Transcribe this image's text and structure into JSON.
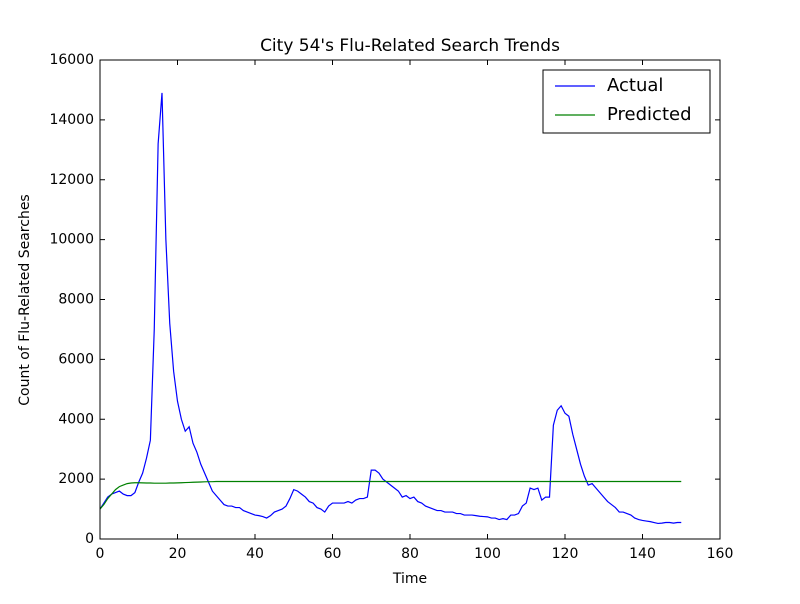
{
  "chart_data": {
    "type": "line",
    "title": "City 54's Flu-Related Search Trends",
    "xlabel": "Time",
    "ylabel": "Count of Flu-Related Searches",
    "x": [
      0,
      1,
      2,
      3,
      4,
      5,
      6,
      7,
      8,
      9,
      10,
      11,
      12,
      13,
      14,
      15,
      16,
      17,
      18,
      19,
      20,
      21,
      22,
      23,
      24,
      25,
      26,
      27,
      28,
      29,
      30,
      31,
      32,
      33,
      34,
      35,
      36,
      37,
      38,
      39,
      40,
      41,
      42,
      43,
      44,
      45,
      46,
      47,
      48,
      49,
      50,
      51,
      52,
      53,
      54,
      55,
      56,
      57,
      58,
      59,
      60,
      61,
      62,
      63,
      64,
      65,
      66,
      67,
      68,
      69,
      70,
      71,
      72,
      73,
      74,
      75,
      76,
      77,
      78,
      79,
      80,
      81,
      82,
      83,
      84,
      85,
      86,
      87,
      88,
      89,
      90,
      91,
      92,
      93,
      94,
      95,
      96,
      97,
      98,
      99,
      100,
      101,
      102,
      103,
      104,
      105,
      106,
      107,
      108,
      109,
      110,
      111,
      112,
      113,
      114,
      115,
      116,
      117,
      118,
      119,
      120,
      121,
      122,
      123,
      124,
      125,
      126,
      127,
      128,
      129,
      130,
      131,
      132,
      133,
      134,
      135,
      136,
      137,
      138,
      139,
      140,
      141,
      142,
      143,
      144,
      145,
      146,
      147,
      148,
      149,
      150
    ],
    "series": [
      {
        "name": "Actual",
        "color": "#0000ff",
        "values": [
          1000,
          1200,
          1400,
          1500,
          1550,
          1600,
          1500,
          1450,
          1450,
          1550,
          1900,
          2200,
          2700,
          3300,
          7000,
          13200,
          14900,
          10000,
          7200,
          5600,
          4600,
          4000,
          3600,
          3750,
          3200,
          2900,
          2500,
          2200,
          1900,
          1600,
          1450,
          1300,
          1150,
          1100,
          1100,
          1050,
          1050,
          950,
          900,
          850,
          800,
          780,
          750,
          700,
          780,
          900,
          950,
          1000,
          1100,
          1350,
          1650,
          1600,
          1500,
          1400,
          1250,
          1200,
          1050,
          1000,
          900,
          1100,
          1200,
          1200,
          1200,
          1200,
          1250,
          1200,
          1300,
          1350,
          1350,
          1400,
          2300,
          2300,
          2200,
          2000,
          1900,
          1800,
          1700,
          1600,
          1400,
          1450,
          1350,
          1400,
          1250,
          1200,
          1100,
          1050,
          1000,
          950,
          950,
          900,
          900,
          900,
          850,
          850,
          800,
          800,
          800,
          780,
          760,
          750,
          740,
          700,
          700,
          650,
          680,
          650,
          800,
          800,
          850,
          1100,
          1200,
          1700,
          1650,
          1700,
          1300,
          1400,
          1400,
          3800,
          4300,
          4450,
          4200,
          4100,
          3500,
          3000,
          2500,
          2100,
          1800,
          1850,
          1700,
          1550,
          1400,
          1250,
          1150,
          1050,
          900,
          900,
          850,
          800,
          700,
          650,
          620,
          600,
          580,
          550,
          520,
          530,
          550,
          550,
          530,
          550,
          550
        ]
      },
      {
        "name": "Predicted",
        "color": "#008000",
        "values": [
          1000,
          1150,
          1350,
          1500,
          1650,
          1750,
          1800,
          1850,
          1870,
          1880,
          1880,
          1875,
          1870,
          1870,
          1865,
          1865,
          1865,
          1865,
          1870,
          1870,
          1875,
          1880,
          1885,
          1890,
          1895,
          1900,
          1905,
          1910,
          1915,
          1915,
          1920,
          1920,
          1920,
          1920,
          1920,
          1920,
          1920,
          1920,
          1920,
          1920,
          1920,
          1920,
          1920,
          1920,
          1920,
          1920,
          1920,
          1920,
          1920,
          1920,
          1920,
          1920,
          1920,
          1920,
          1920,
          1920,
          1920,
          1920,
          1920,
          1920,
          1920,
          1920,
          1920,
          1920,
          1920,
          1920,
          1920,
          1920,
          1920,
          1920,
          1920,
          1920,
          1920,
          1920,
          1920,
          1920,
          1920,
          1920,
          1920,
          1920,
          1920,
          1920,
          1920,
          1920,
          1920,
          1920,
          1920,
          1920,
          1920,
          1920,
          1920,
          1920,
          1920,
          1920,
          1920,
          1920,
          1920,
          1920,
          1920,
          1920,
          1920,
          1920,
          1920,
          1920,
          1920,
          1920,
          1920,
          1920,
          1920,
          1920,
          1920,
          1920,
          1920,
          1920,
          1920,
          1920,
          1920,
          1920,
          1920,
          1920,
          1920,
          1920,
          1920,
          1920,
          1920,
          1920,
          1920,
          1920,
          1920,
          1920,
          1920,
          1920,
          1920,
          1920,
          1920,
          1920,
          1920,
          1920,
          1920,
          1920,
          1920,
          1920,
          1920,
          1920,
          1920,
          1920,
          1920,
          1920,
          1920,
          1920,
          1920
        ]
      }
    ],
    "xlim": [
      0,
      160
    ],
    "xticks": [
      0,
      20,
      40,
      60,
      80,
      100,
      120,
      140,
      160
    ],
    "ylim": [
      0,
      16000
    ],
    "yticks": [
      0,
      2000,
      4000,
      6000,
      8000,
      10000,
      12000,
      14000,
      16000
    ],
    "legend": "upper right"
  }
}
